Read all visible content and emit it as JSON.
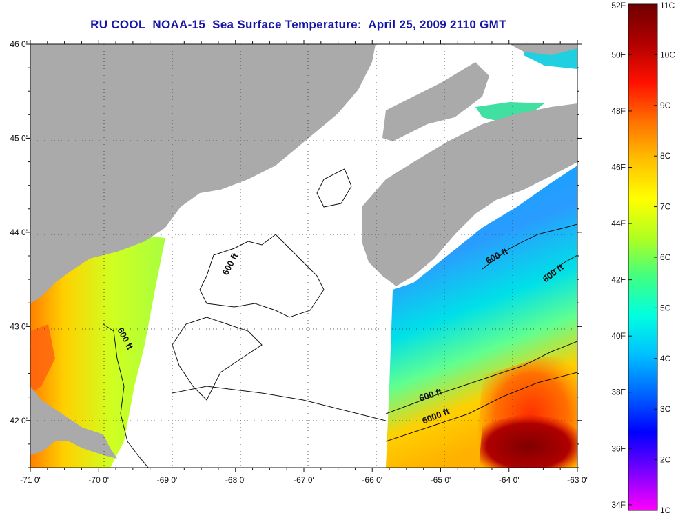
{
  "title": "RU COOL  NOAA-15  Sea Surface Temperature:  April 25, 2009 2110 GMT",
  "chart_data": {
    "type": "heatmap",
    "title": "RU COOL  NOAA-15  Sea Surface Temperature:  April 25, 2009 2110 GMT",
    "xlabel": "",
    "ylabel": "",
    "xlim": [
      -71,
      -63
    ],
    "ylim": [
      41.5,
      46
    ],
    "x_ticks": [
      -71,
      -70,
      -69,
      -68,
      -67,
      -66,
      -65,
      -64,
      -63
    ],
    "x_tick_labels": [
      "-71 0'",
      "-70 0'",
      "-69 0'",
      "-68 0'",
      "-67 0'",
      "-66 0'",
      "-65 0'",
      "-64 0'",
      "-63 0'"
    ],
    "y_ticks": [
      42,
      43,
      44,
      45,
      46
    ],
    "y_tick_labels": [
      "42 0'",
      "43 0'",
      "44 0'",
      "45 0'",
      "46 0'"
    ],
    "grid": true,
    "grid_style": "dotted",
    "colorbar": {
      "min_c": 1,
      "max_c": 11,
      "labels_f": [
        "52F",
        "50F",
        "48F",
        "46F",
        "44F",
        "42F",
        "40F",
        "38F",
        "36F",
        "34F"
      ],
      "labels_c": [
        "11C",
        "10C",
        "9C",
        "8C",
        "7C",
        "6C",
        "5C",
        "4C",
        "3C",
        "2C",
        "1C"
      ],
      "colors": [
        "#ff00ff",
        "#7a00ff",
        "#0000ff",
        "#0066ff",
        "#00c0ff",
        "#00ffe0",
        "#40ff80",
        "#b0ff20",
        "#ffff00",
        "#ffc000",
        "#ff7000",
        "#ff1000",
        "#b00000",
        "#700000"
      ]
    },
    "contour_labels": [
      {
        "text": "600 ft"
      },
      {
        "text": "600 ft"
      },
      {
        "text": "600 ft"
      },
      {
        "text": "600 ft"
      },
      {
        "text": "600 ft"
      },
      {
        "text": "6000 ft"
      }
    ],
    "land_color": "#aaaaaa",
    "no_data_color": "#ffffff"
  }
}
